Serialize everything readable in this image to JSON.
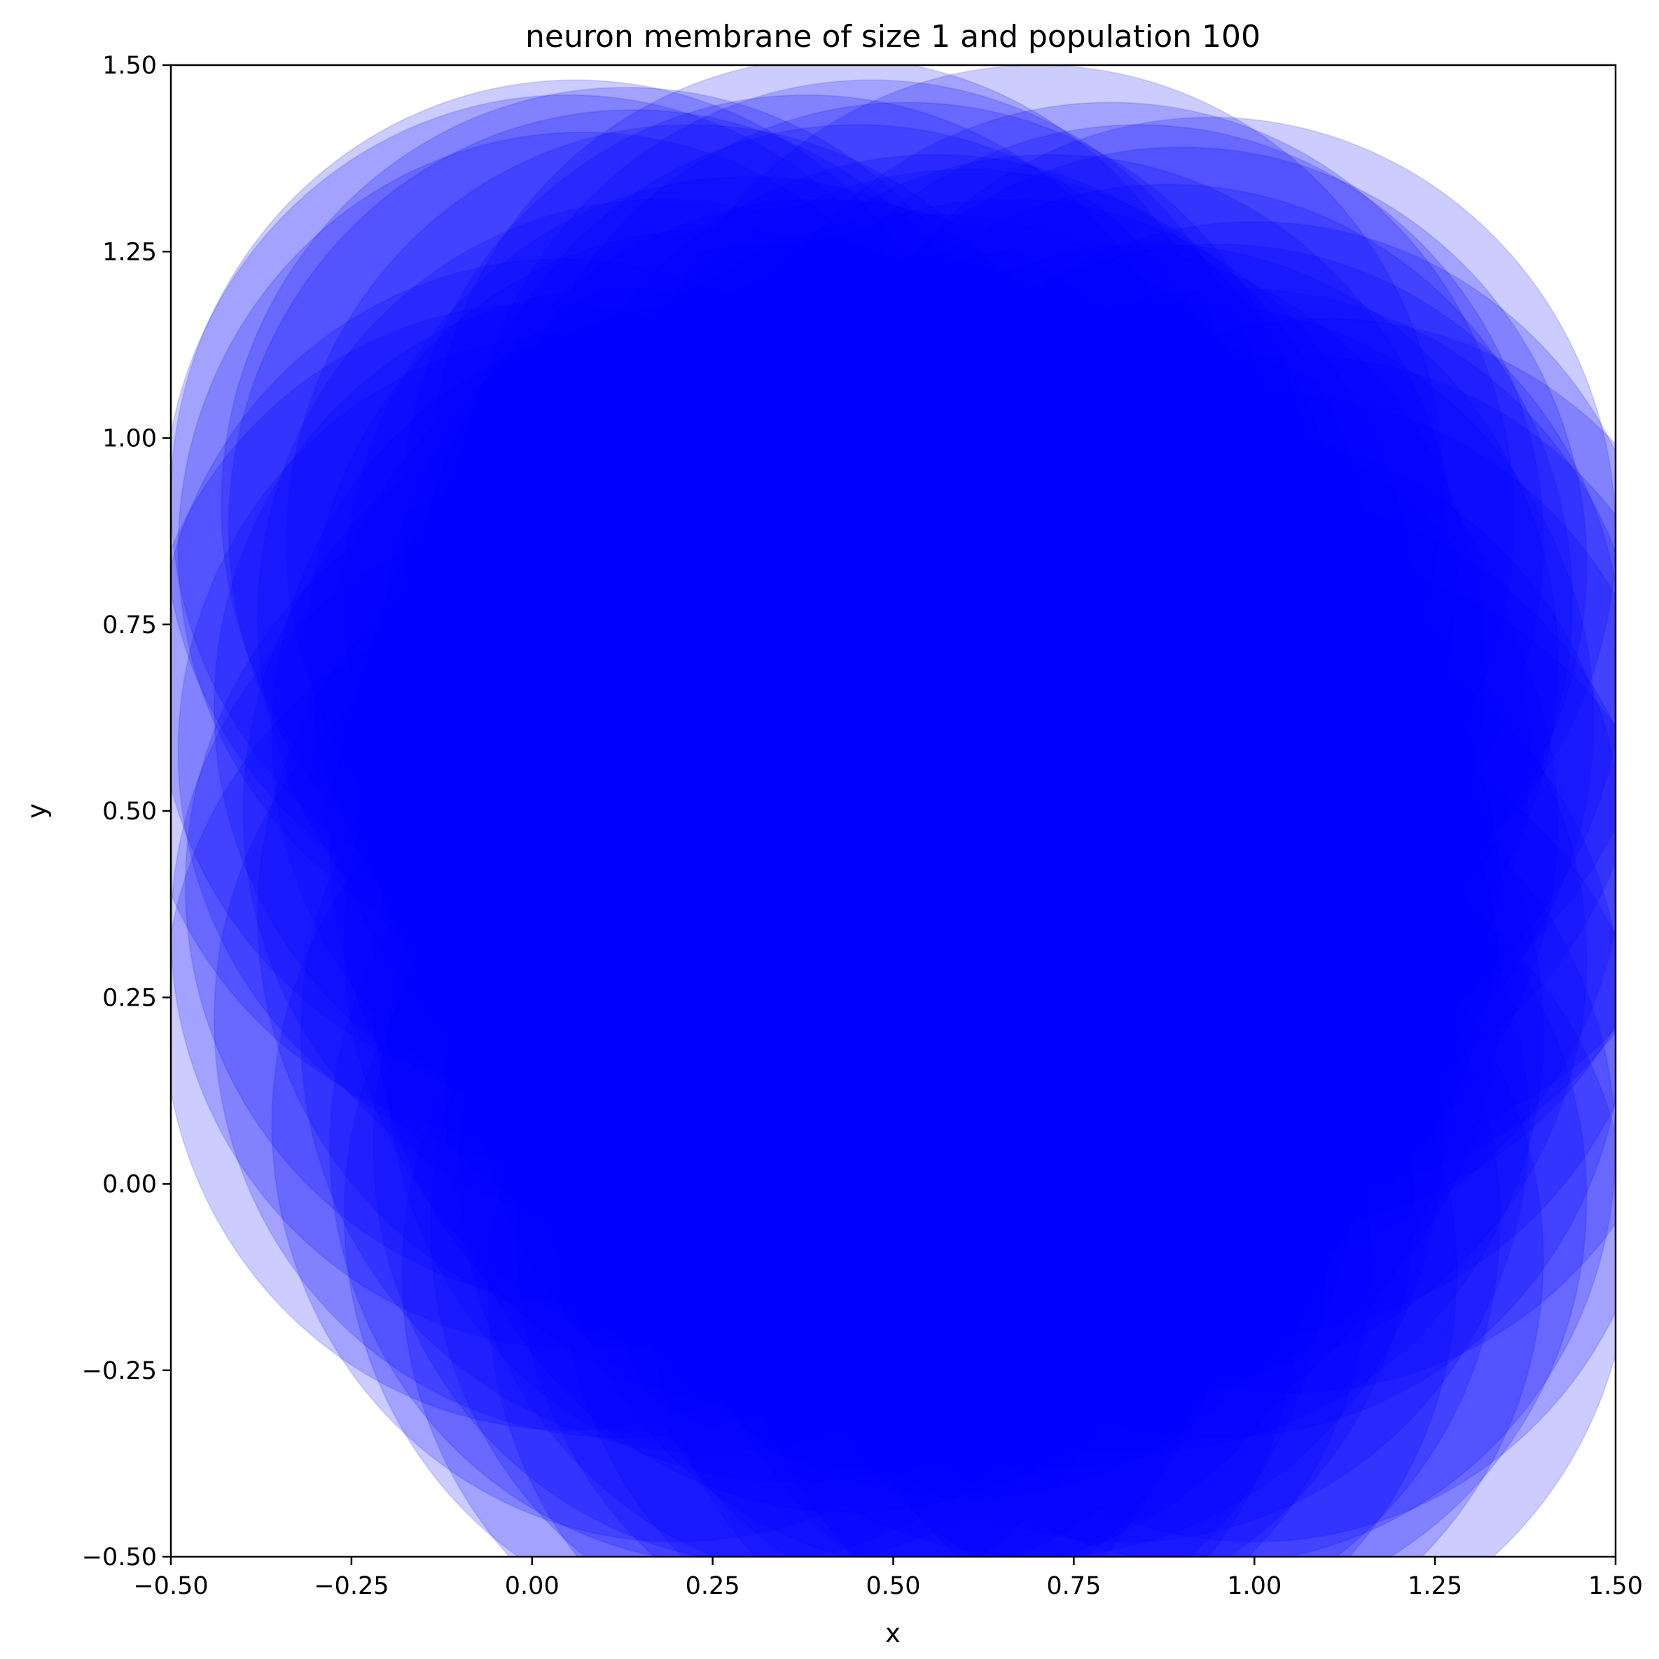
{
  "chart_data": {
    "type": "scatter",
    "title": "neuron membrane of size 1 and population 100",
    "xlabel": "x",
    "ylabel": "y",
    "xlim": [
      -0.5,
      1.5
    ],
    "ylim": [
      -0.5,
      1.5
    ],
    "xticks": [
      "−0.50",
      "−0.25",
      "0.00",
      "0.25",
      "0.50",
      "0.75",
      "1.00",
      "1.25",
      "1.50"
    ],
    "yticks": [
      "−0.50",
      "−0.25",
      "0.00",
      "0.25",
      "0.50",
      "0.75",
      "1.00",
      "1.25",
      "1.50"
    ],
    "marker": "circle",
    "color": "#0000ff",
    "alpha": 0.2,
    "count": 100,
    "circle_radius": 0.56,
    "points": [
      [
        0.13,
        0.91
      ],
      [
        0.06,
        0.92
      ],
      [
        0.05,
        0.9
      ],
      [
        0.07,
        0.85
      ],
      [
        0.14,
        0.88
      ],
      [
        0.47,
        0.92
      ],
      [
        0.42,
        0.95
      ],
      [
        0.38,
        0.9
      ],
      [
        0.45,
        0.86
      ],
      [
        0.52,
        0.89
      ],
      [
        0.8,
        0.89
      ],
      [
        0.84,
        0.86
      ],
      [
        0.9,
        0.83
      ],
      [
        0.94,
        0.87
      ],
      [
        0.88,
        0.78
      ],
      [
        0.6,
        0.8
      ],
      [
        0.66,
        0.76
      ],
      [
        0.72,
        0.82
      ],
      [
        0.55,
        0.74
      ],
      [
        0.3,
        0.79
      ],
      [
        0.25,
        0.72
      ],
      [
        0.18,
        0.76
      ],
      [
        0.35,
        0.7
      ],
      [
        0.4,
        0.76
      ],
      [
        0.5,
        0.68
      ],
      [
        0.76,
        0.7
      ],
      [
        0.95,
        0.7
      ],
      [
        1.0,
        0.73
      ],
      [
        0.98,
        0.64
      ],
      [
        0.91,
        0.62
      ],
      [
        0.04,
        0.68
      ],
      [
        0.01,
        0.62
      ],
      [
        0.07,
        0.58
      ],
      [
        0.12,
        0.64
      ],
      [
        0.2,
        0.6
      ],
      [
        0.32,
        0.58
      ],
      [
        0.45,
        0.57
      ],
      [
        0.58,
        0.6
      ],
      [
        0.7,
        0.55
      ],
      [
        0.82,
        0.58
      ],
      [
        1.06,
        0.55
      ],
      [
        1.1,
        0.6
      ],
      [
        1.02,
        0.5
      ],
      [
        0.95,
        0.45
      ],
      [
        0.86,
        0.48
      ],
      [
        0.64,
        0.46
      ],
      [
        0.52,
        0.42
      ],
      [
        0.4,
        0.47
      ],
      [
        0.28,
        0.45
      ],
      [
        0.16,
        0.5
      ],
      [
        0.08,
        0.4
      ],
      [
        0.06,
        0.34
      ],
      [
        0.18,
        0.36
      ],
      [
        0.3,
        0.32
      ],
      [
        0.44,
        0.35
      ],
      [
        0.56,
        0.3
      ],
      [
        0.68,
        0.33
      ],
      [
        0.78,
        0.38
      ],
      [
        0.9,
        0.3
      ],
      [
        1.0,
        0.36
      ],
      [
        1.05,
        0.28
      ],
      [
        0.95,
        0.22
      ],
      [
        0.84,
        0.2
      ],
      [
        0.72,
        0.18
      ],
      [
        0.6,
        0.14
      ],
      [
        0.48,
        0.18
      ],
      [
        0.36,
        0.16
      ],
      [
        0.24,
        0.2
      ],
      [
        0.12,
        0.22
      ],
      [
        0.05,
        0.23
      ],
      [
        0.2,
        0.08
      ],
      [
        0.34,
        0.05
      ],
      [
        0.46,
        0.02
      ],
      [
        0.58,
        0.04
      ],
      [
        0.7,
        0.06
      ],
      [
        0.82,
        0.08
      ],
      [
        0.94,
        0.05
      ],
      [
        1.0,
        0.08
      ],
      [
        0.9,
        -0.02
      ],
      [
        0.78,
        -0.05
      ],
      [
        0.66,
        -0.03
      ],
      [
        0.54,
        -0.08
      ],
      [
        0.42,
        -0.06
      ],
      [
        0.3,
        -0.04
      ],
      [
        0.28,
        0.05
      ],
      [
        0.6,
        -0.1
      ],
      [
        0.72,
        -0.12
      ],
      [
        0.5,
        -0.15
      ],
      [
        0.38,
        -0.12
      ],
      [
        0.84,
        -0.1
      ],
      [
        0.96,
        -0.08
      ],
      [
        0.26,
        0.62
      ],
      [
        0.62,
        0.64
      ],
      [
        0.78,
        0.26
      ],
      [
        0.34,
        0.26
      ],
      [
        0.56,
        0.82
      ],
      [
        0.7,
        0.94
      ],
      [
        0.22,
        0.86
      ],
      [
        0.86,
        0.7
      ],
      [
        0.44,
        0.12
      ]
    ]
  }
}
